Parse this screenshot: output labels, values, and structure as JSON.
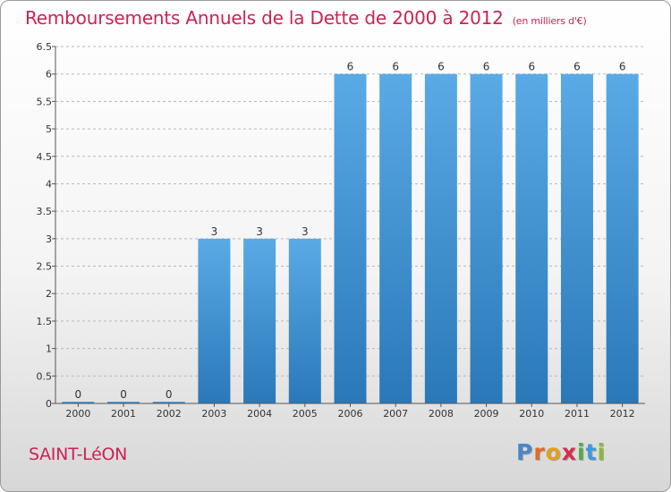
{
  "title": "Remboursements Annuels de la Dette de 2000 à 2012",
  "subtitle": "(en milliers d'€)",
  "commune": "SAINT-LéON",
  "logo": {
    "letters": [
      "P",
      "r",
      "o",
      "x",
      "i",
      "t",
      "i"
    ],
    "colors": [
      "#4a86c8",
      "#e06a2a",
      "#e0a020",
      "#d03050",
      "#58a848",
      "#3e9ad8",
      "#88b83a"
    ]
  },
  "colors": {
    "bar_top": "#5aaae6",
    "bar_bottom": "#2a78b8",
    "title": "#cc2255",
    "axis": "#555555",
    "grid": "#b8b8b8"
  },
  "chart_data": {
    "type": "bar",
    "categories": [
      "2000",
      "2001",
      "2002",
      "2003",
      "2004",
      "2005",
      "2006",
      "2007",
      "2008",
      "2009",
      "2010",
      "2011",
      "2012"
    ],
    "values": [
      0,
      0,
      0,
      3,
      3,
      3,
      6,
      6,
      6,
      6,
      6,
      6,
      6
    ],
    "data_labels": [
      "0",
      "0",
      "0",
      "3",
      "3",
      "3",
      "6",
      "6",
      "6",
      "6",
      "6",
      "6",
      "6"
    ],
    "ylim": [
      0,
      6.5
    ],
    "yticks": [
      0,
      0.5,
      1,
      1.5,
      2,
      2.5,
      3,
      3.5,
      4,
      4.5,
      5,
      5.5,
      6,
      6.5
    ],
    "ytick_labels": [
      "0",
      "0.5",
      "1",
      "1.5",
      "2",
      "2.5",
      "3",
      "3.5",
      "4",
      "4.5",
      "5",
      "5.5",
      "6",
      "6.5"
    ],
    "grid": "horizontal dashed",
    "xlabel": "",
    "ylabel": ""
  }
}
